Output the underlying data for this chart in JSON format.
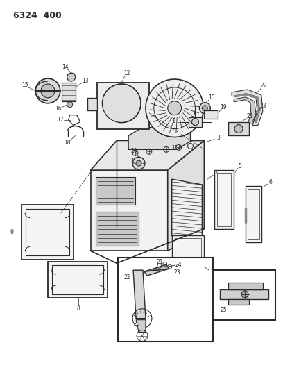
{
  "title": "6324  400",
  "bg_color": "#ffffff",
  "line_color": "#2a2a2a",
  "fig_width": 4.08,
  "fig_height": 5.33,
  "dpi": 100
}
